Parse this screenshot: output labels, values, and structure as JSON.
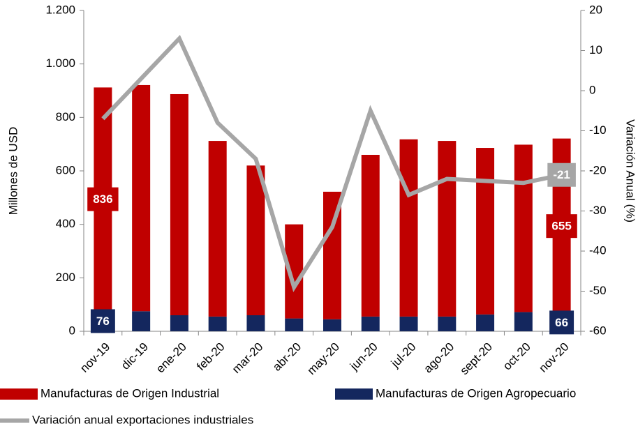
{
  "chart_data": {
    "type": "bar",
    "categories": [
      "nov-19",
      "dic-19",
      "ene-20",
      "feb-20",
      "mar-20",
      "abr-20",
      "may-20",
      "jun-20",
      "jul-20",
      "ago-20",
      "sept-20",
      "oct-20",
      "nov-20"
    ],
    "y_label": "Millones de USD",
    "y2_label": "Variación Anual (%)",
    "stacked": true,
    "series": [
      {
        "name": "Manufacturas de Origen Agropecuario",
        "color": "#14275e",
        "type": "bar",
        "values": [
          76,
          75,
          60,
          55,
          60,
          48,
          45,
          55,
          55,
          55,
          63,
          72,
          66
        ],
        "value_labels": [
          "76",
          null,
          null,
          null,
          null,
          null,
          null,
          null,
          null,
          null,
          null,
          null,
          "66"
        ]
      },
      {
        "name": "Manufacturas de Origen Industrial",
        "color": "#c00000",
        "type": "bar",
        "values": [
          836,
          846,
          827,
          657,
          560,
          352,
          477,
          605,
          663,
          657,
          623,
          626,
          655
        ],
        "value_labels": [
          "836",
          null,
          null,
          null,
          null,
          null,
          null,
          null,
          null,
          null,
          null,
          null,
          "655"
        ]
      },
      {
        "name": "Variación anual exportaciones industriales",
        "color": "#a6a6a6",
        "type": "line",
        "axis": "y2",
        "values": [
          -7,
          3,
          13,
          -8,
          -17,
          -49,
          -34,
          -5,
          -26,
          -22,
          -22.5,
          -23,
          -21
        ],
        "value_labels": [
          null,
          null,
          null,
          null,
          null,
          null,
          null,
          null,
          null,
          null,
          null,
          null,
          "-21"
        ]
      }
    ],
    "ylim": [
      0,
      1200
    ],
    "yticks": [
      0,
      200,
      400,
      600,
      800,
      {
        "value": 1000,
        "label": "1.000"
      },
      {
        "value": 1200,
        "label": "1.200"
      }
    ],
    "y2lim": [
      -60,
      20
    ],
    "y2ticks": [
      -60,
      -50,
      -40,
      -30,
      -20,
      -10,
      0,
      10,
      20
    ],
    "legend": "bottom"
  }
}
